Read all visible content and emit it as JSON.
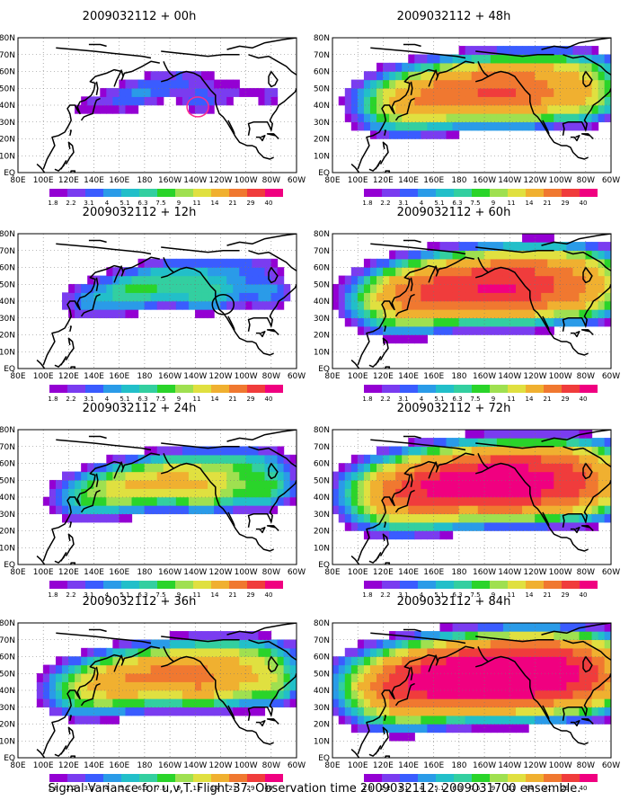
{
  "panels": [
    {
      "title": "2009032112 + 00h",
      "intensity": 0.9,
      "spread": 0.35,
      "circle": {
        "color": "#ff2d8c",
        "lon": -138,
        "lat": 39
      }
    },
    {
      "title": "2009032112 + 12h",
      "intensity": 1.4,
      "spread": 0.65,
      "circle": {
        "color": "#000000",
        "lon": -118,
        "lat": 38
      }
    },
    {
      "title": "2009032112 + 24h",
      "intensity": 2.3,
      "spread": 0.85
    },
    {
      "title": "2009032112 + 36h",
      "intensity": 3.1,
      "spread": 1.05
    },
    {
      "title": "2009032112 + 48h",
      "intensity": 3.7,
      "spread": 1.15
    },
    {
      "title": "2009032112 + 60h",
      "intensity": 4.8,
      "spread": 1.25
    },
    {
      "title": "2009032112 + 72h",
      "intensity": 6.0,
      "spread": 1.35
    },
    {
      "title": "2009032112 + 84h",
      "intensity": 7.0,
      "spread": 1.45
    }
  ],
  "lon_labels": [
    "80E",
    "100E",
    "120E",
    "140E",
    "160E",
    "180",
    "160W",
    "140W",
    "120W",
    "100W",
    "80W",
    "60W"
  ],
  "lat_labels": [
    "EQ",
    "10N",
    "20N",
    "30N",
    "40N",
    "50N",
    "60N",
    "70N",
    "80N"
  ],
  "legend": {
    "levels": [
      "1.8",
      "2.2",
      "3.1",
      "4",
      "5.1",
      "6.3",
      "7.5",
      "9",
      "11",
      "14",
      "21",
      "29",
      "40"
    ],
    "colors": [
      "#9400d3",
      "#7a3cf0",
      "#3a5cff",
      "#2a9be8",
      "#22bfc9",
      "#33cfa0",
      "#2ad42a",
      "#9fe050",
      "#e0e040",
      "#f0b030",
      "#f07830",
      "#f03c3c",
      "#f00080"
    ]
  },
  "caption": "Signal Variance for u,v,T. Flight 37. Observation time 2009032112. 2009031700 ensemble."
}
